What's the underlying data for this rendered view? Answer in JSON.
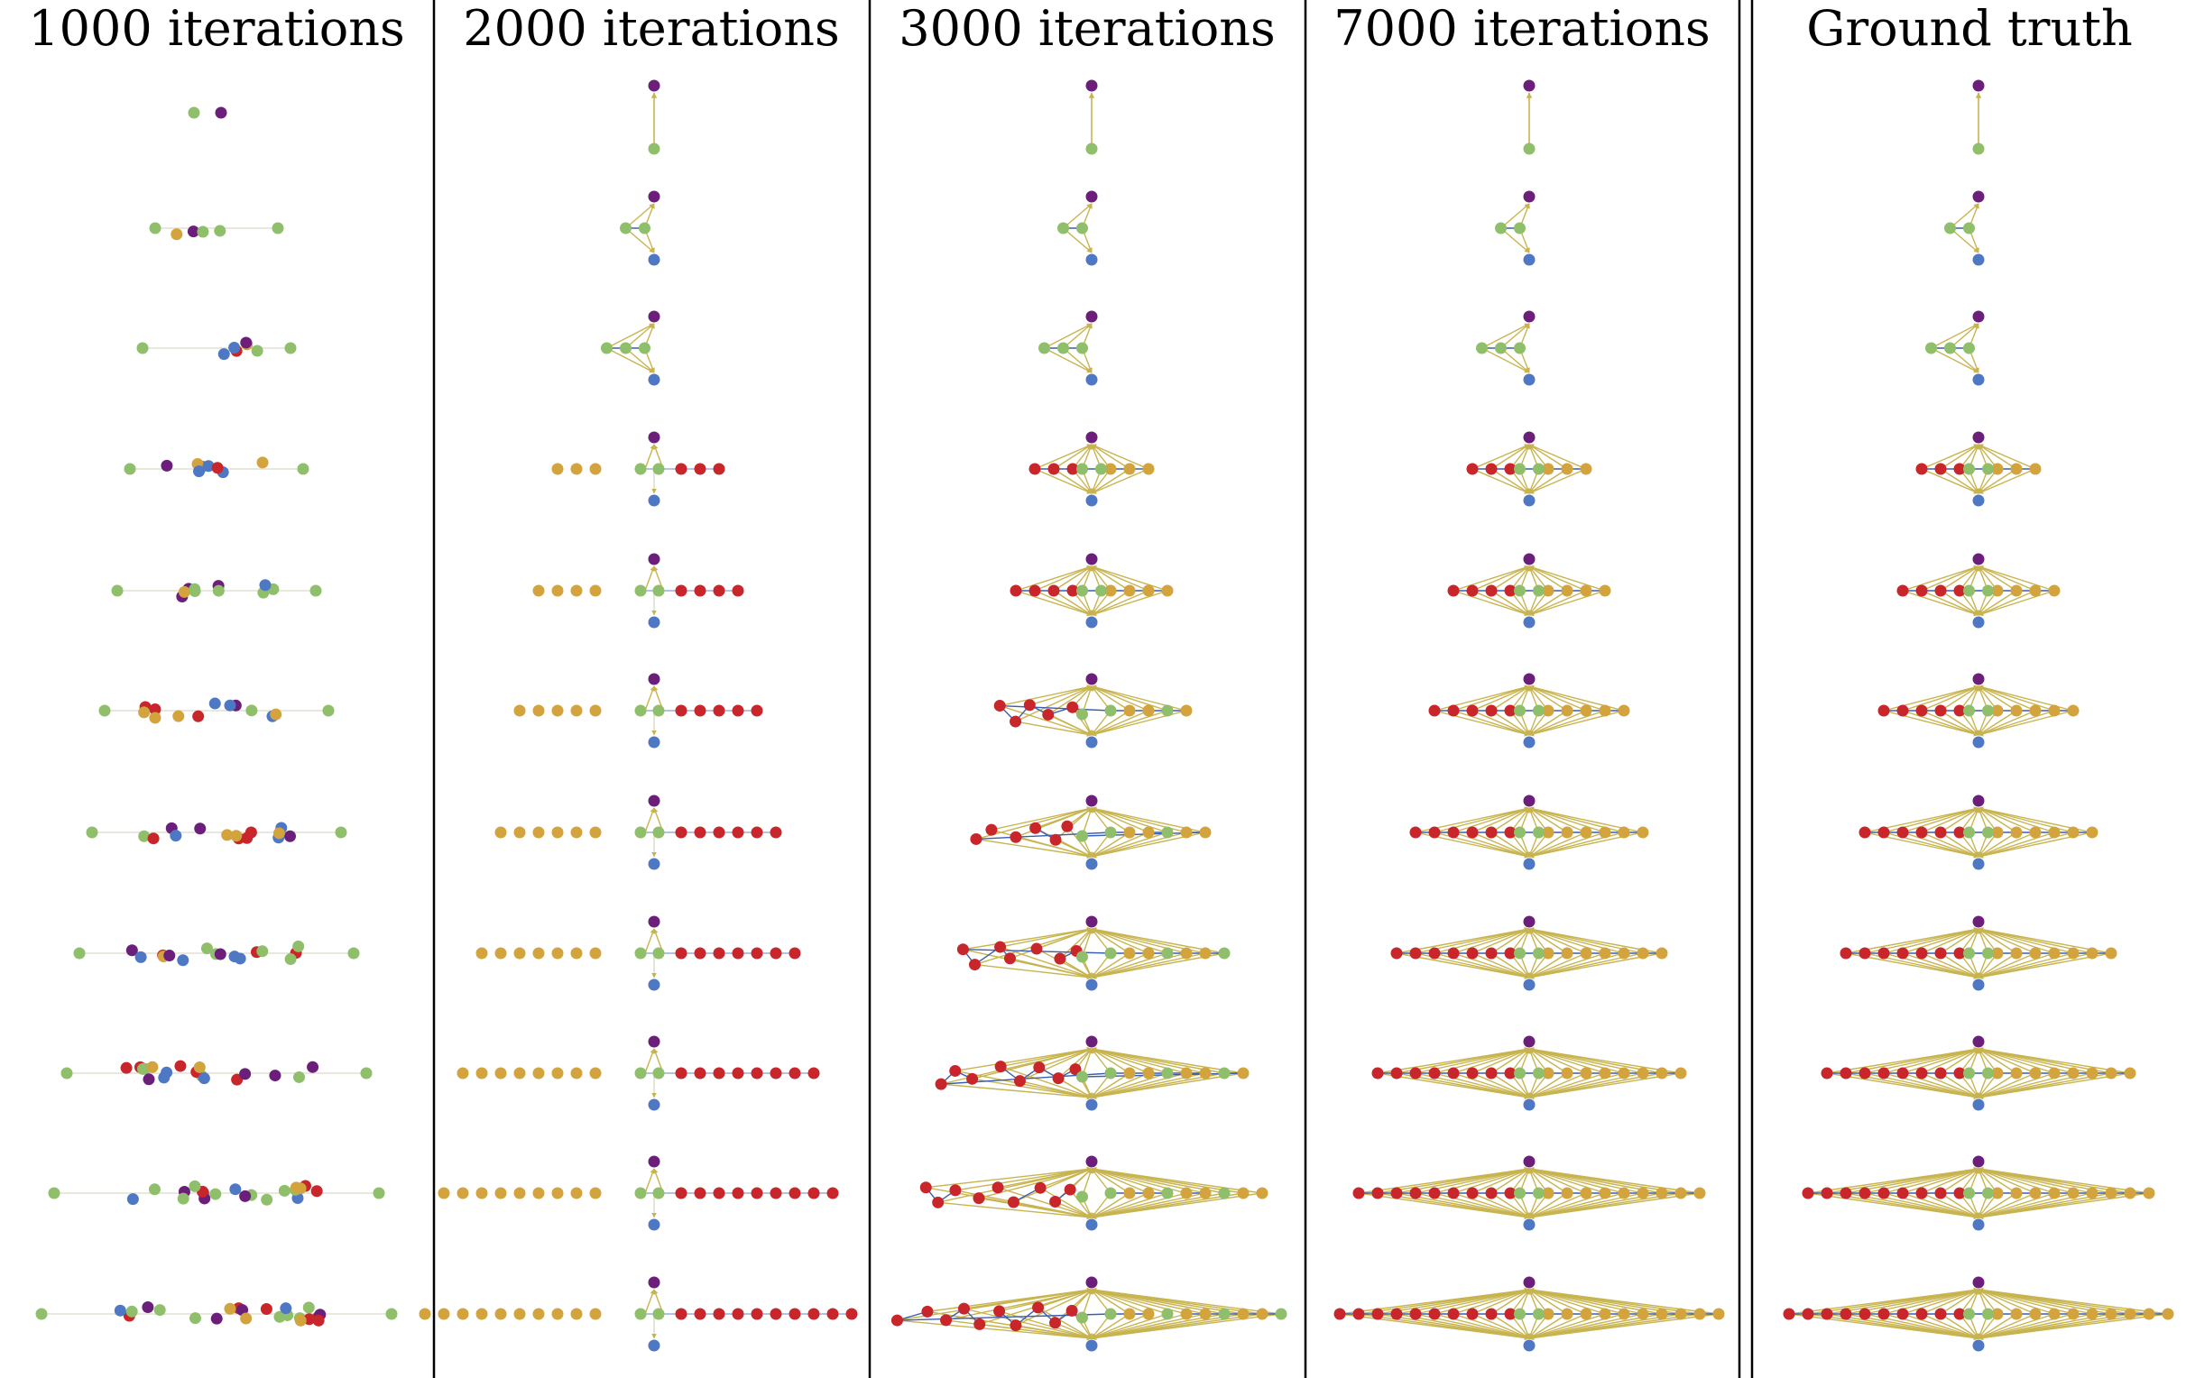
{
  "figure": {
    "columns": [
      {
        "title": "1000 iterations",
        "kind": "jumbled"
      },
      {
        "title": "2000 iterations",
        "kind": "partial"
      },
      {
        "title": "3000 iterations",
        "kind": "distorted"
      },
      {
        "title": "7000 iterations",
        "kind": "clean"
      },
      {
        "title": "Ground truth",
        "kind": "clean"
      }
    ],
    "graph_sizes": [
      1,
      2,
      3,
      4,
      5,
      6,
      7,
      8,
      9,
      10,
      11
    ],
    "colors": {
      "top_node": "#6b1f7a",
      "middle_node": "#8fbf6a",
      "bottom_node": "#4f78c4",
      "left_node": "#c8262a",
      "right_node": "#d3a33e",
      "edge": "#c8b44f",
      "chain_edge": "#3a5fb0",
      "faint_edge": "#d9d9c8"
    }
  }
}
